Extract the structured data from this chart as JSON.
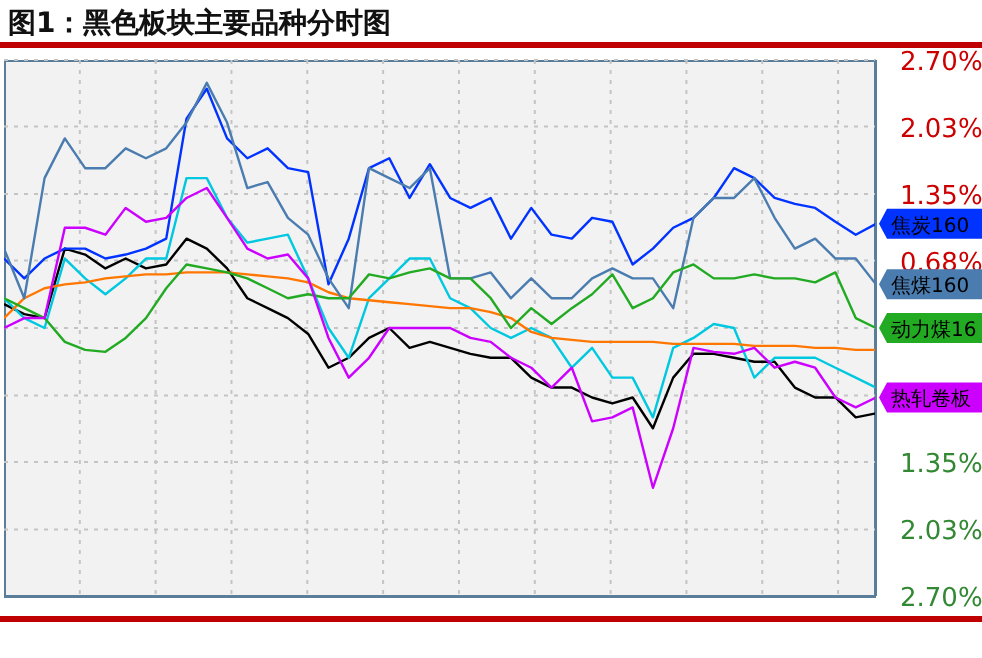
{
  "chart_data": {
    "type": "line",
    "title": "图1：黑色板块主要品种分时图",
    "categories": [
      null,
      null,
      null,
      null,
      null,
      null,
      null,
      null,
      null,
      null,
      null,
      null,
      null,
      null,
      null,
      null,
      null,
      null,
      null,
      null,
      null,
      null,
      null,
      null,
      null,
      null,
      null,
      null,
      null,
      null,
      null,
      null,
      null,
      null,
      null,
      null,
      null,
      null,
      null,
      null,
      null,
      null,
      null,
      null
    ],
    "ylim": [
      -2.7,
      2.7
    ],
    "yticks": [
      {
        "value": 2.7,
        "label": "2.70%"
      },
      {
        "value": 2.03,
        "label": "2.03%"
      },
      {
        "value": 1.35,
        "label": "1.35%"
      },
      {
        "value": 0.68,
        "label": "0.68%"
      },
      {
        "value": 0,
        "label": null
      },
      {
        "value": -0.68,
        "label": null
      },
      {
        "value": -1.35,
        "label": "1.35%"
      },
      {
        "value": -2.03,
        "label": "2.03%"
      },
      {
        "value": -2.7,
        "label": "2.70%"
      }
    ],
    "grid": true,
    "marker": "none",
    "line_style": "solid",
    "series": [
      {
        "name": "焦炭160",
        "color": "#0033ff",
        "values": [
          0.7,
          0.5,
          0.7,
          0.8,
          0.8,
          0.7,
          0.74,
          0.8,
          0.9,
          2.11,
          2.41,
          1.91,
          1.71,
          1.81,
          1.61,
          1.57,
          0.44,
          0.9,
          1.61,
          1.71,
          1.31,
          1.65,
          1.31,
          1.21,
          1.31,
          0.9,
          1.21,
          0.94,
          0.9,
          1.11,
          1.07,
          0.64,
          0.8,
          1.01,
          1.11,
          1.31,
          1.61,
          1.51,
          1.31,
          1.25,
          1.21,
          1.07,
          0.94,
          1.05
        ]
      },
      {
        "name": "焦煤160",
        "color": "#4a7cb0",
        "values": [
          0.8,
          0.3,
          1.51,
          1.91,
          1.61,
          1.61,
          1.81,
          1.71,
          1.81,
          2.07,
          2.47,
          2.07,
          1.41,
          1.47,
          1.11,
          0.94,
          0.5,
          0.2,
          1.61,
          1.51,
          1.41,
          1.61,
          0.5,
          0.5,
          0.56,
          0.3,
          0.5,
          0.3,
          0.3,
          0.5,
          0.6,
          0.5,
          0.5,
          0.2,
          1.11,
          1.31,
          1.31,
          1.51,
          1.11,
          0.8,
          0.9,
          0.7,
          0.7,
          0.44
        ]
      },
      {
        "name": "动力煤16",
        "color": "#22aa22",
        "values": [
          0.3,
          0.2,
          0.1,
          -0.14,
          -0.22,
          -0.24,
          -0.1,
          0.1,
          0.4,
          0.64,
          0.6,
          0.56,
          0.5,
          0.4,
          0.3,
          0.34,
          0.3,
          0.3,
          0.54,
          0.5,
          0.56,
          0.6,
          0.5,
          0.5,
          0.3,
          0.0,
          0.2,
          0.04,
          0.2,
          0.34,
          0.54,
          0.2,
          0.3,
          0.56,
          0.64,
          0.5,
          0.5,
          0.54,
          0.5,
          0.5,
          0.46,
          0.56,
          0.1,
          0.0
        ]
      },
      {
        "name": "热轧卷板",
        "color": "#cc00ff",
        "values": [
          0.0,
          0.1,
          0.1,
          1.01,
          1.01,
          0.94,
          1.21,
          1.07,
          1.11,
          1.31,
          1.41,
          1.11,
          0.8,
          0.7,
          0.74,
          0.5,
          -0.1,
          -0.5,
          -0.3,
          0.0,
          0.0,
          0.0,
          0.0,
          -0.1,
          -0.14,
          -0.3,
          -0.4,
          -0.6,
          -0.4,
          -0.94,
          -0.9,
          -0.8,
          -1.61,
          -1.01,
          -0.2,
          -0.24,
          -0.26,
          -0.2,
          -0.4,
          -0.34,
          -0.4,
          -0.7,
          -0.8,
          -0.7
        ]
      },
      {
        "color": "#000000",
        "values": [
          0.24,
          0.14,
          0.1,
          0.8,
          0.74,
          0.6,
          0.7,
          0.6,
          0.64,
          0.9,
          0.8,
          0.6,
          0.3,
          0.2,
          0.1,
          -0.06,
          -0.4,
          -0.3,
          -0.1,
          0.0,
          -0.2,
          -0.14,
          -0.2,
          -0.26,
          -0.3,
          -0.3,
          -0.5,
          -0.6,
          -0.6,
          -0.7,
          -0.76,
          -0.7,
          -1.01,
          -0.5,
          -0.26,
          -0.26,
          -0.3,
          -0.34,
          -0.34,
          -0.6,
          -0.7,
          -0.7,
          -0.9,
          -0.86
        ]
      },
      {
        "color": "#00c8e0",
        "values": [
          0.3,
          0.1,
          0.0,
          0.7,
          0.5,
          0.34,
          0.5,
          0.7,
          0.7,
          1.51,
          1.51,
          1.11,
          0.86,
          0.9,
          0.94,
          0.5,
          0.0,
          -0.3,
          0.3,
          0.5,
          0.7,
          0.7,
          0.3,
          0.2,
          0.0,
          -0.1,
          0.0,
          -0.1,
          -0.4,
          -0.2,
          -0.5,
          -0.5,
          -0.9,
          -0.2,
          -0.1,
          0.04,
          0.0,
          -0.5,
          -0.3,
          -0.3,
          -0.3,
          -0.4,
          -0.5,
          -0.6
        ]
      },
      {
        "color": "#ff7700",
        "values": [
          0.1,
          0.3,
          0.4,
          0.44,
          0.46,
          0.5,
          0.52,
          0.54,
          0.54,
          0.56,
          0.56,
          0.56,
          0.54,
          0.52,
          0.5,
          0.46,
          0.36,
          0.3,
          0.28,
          0.26,
          0.24,
          0.22,
          0.2,
          0.2,
          0.16,
          0.1,
          -0.04,
          -0.1,
          -0.12,
          -0.14,
          -0.14,
          -0.14,
          -0.14,
          -0.16,
          -0.16,
          -0.16,
          -0.16,
          -0.18,
          -0.18,
          -0.18,
          -0.2,
          -0.2,
          -0.22,
          -0.22
        ]
      }
    ]
  }
}
